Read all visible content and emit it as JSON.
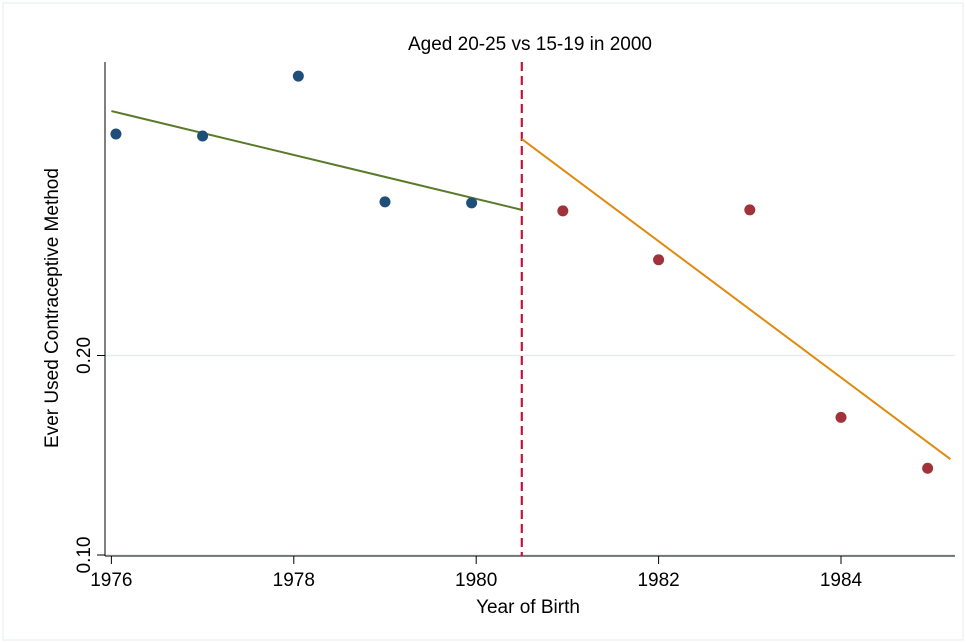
{
  "chart_data": {
    "type": "scatter",
    "title": "Aged 20-25 vs 15-19 in 2000",
    "xlabel": "Year of Birth",
    "ylabel": "Ever Used Contraceptive Method",
    "xlim": [
      1975.93,
      1985.25
    ],
    "ylim": [
      0.0995,
      0.3471
    ],
    "x_ticks": [
      {
        "value": 1976,
        "label": "1976"
      },
      {
        "value": 1978,
        "label": "1978"
      },
      {
        "value": 1980,
        "label": "1980"
      },
      {
        "value": 1982,
        "label": "1982"
      },
      {
        "value": 1984,
        "label": "1984"
      }
    ],
    "y_ticks": [
      {
        "value": 0.1,
        "label": "0.10"
      },
      {
        "value": 0.2,
        "label": "0.20"
      }
    ],
    "grid": {
      "horizontal": true,
      "vertical": false
    },
    "cutoff": {
      "x": 1980.5,
      "color": "#c0143c",
      "style": "dashed"
    },
    "series": [
      {
        "color": "#1f4e79",
        "points": [
          {
            "x": 1976.05,
            "y": 0.311
          },
          {
            "x": 1977.0,
            "y": 0.31
          },
          {
            "x": 1978.05,
            "y": 0.34
          },
          {
            "x": 1979.0,
            "y": 0.277
          },
          {
            "x": 1979.95,
            "y": 0.2765
          }
        ]
      },
      {
        "color": "#a0333a",
        "points": [
          {
            "x": 1980.95,
            "y": 0.2725
          },
          {
            "x": 1982.0,
            "y": 0.248
          },
          {
            "x": 1983.0,
            "y": 0.273
          },
          {
            "x": 1984.0,
            "y": 0.169
          },
          {
            "x": 1984.95,
            "y": 0.1435
          }
        ]
      }
    ],
    "fit_lines": [
      {
        "color": "#5a7a2a",
        "x": [
          1976.0,
          1980.5
        ],
        "y": [
          0.3225,
          0.273
        ]
      },
      {
        "color": "#e08a10",
        "x": [
          1980.5,
          1985.2
        ],
        "y": [
          0.3085,
          0.148
        ]
      }
    ]
  }
}
